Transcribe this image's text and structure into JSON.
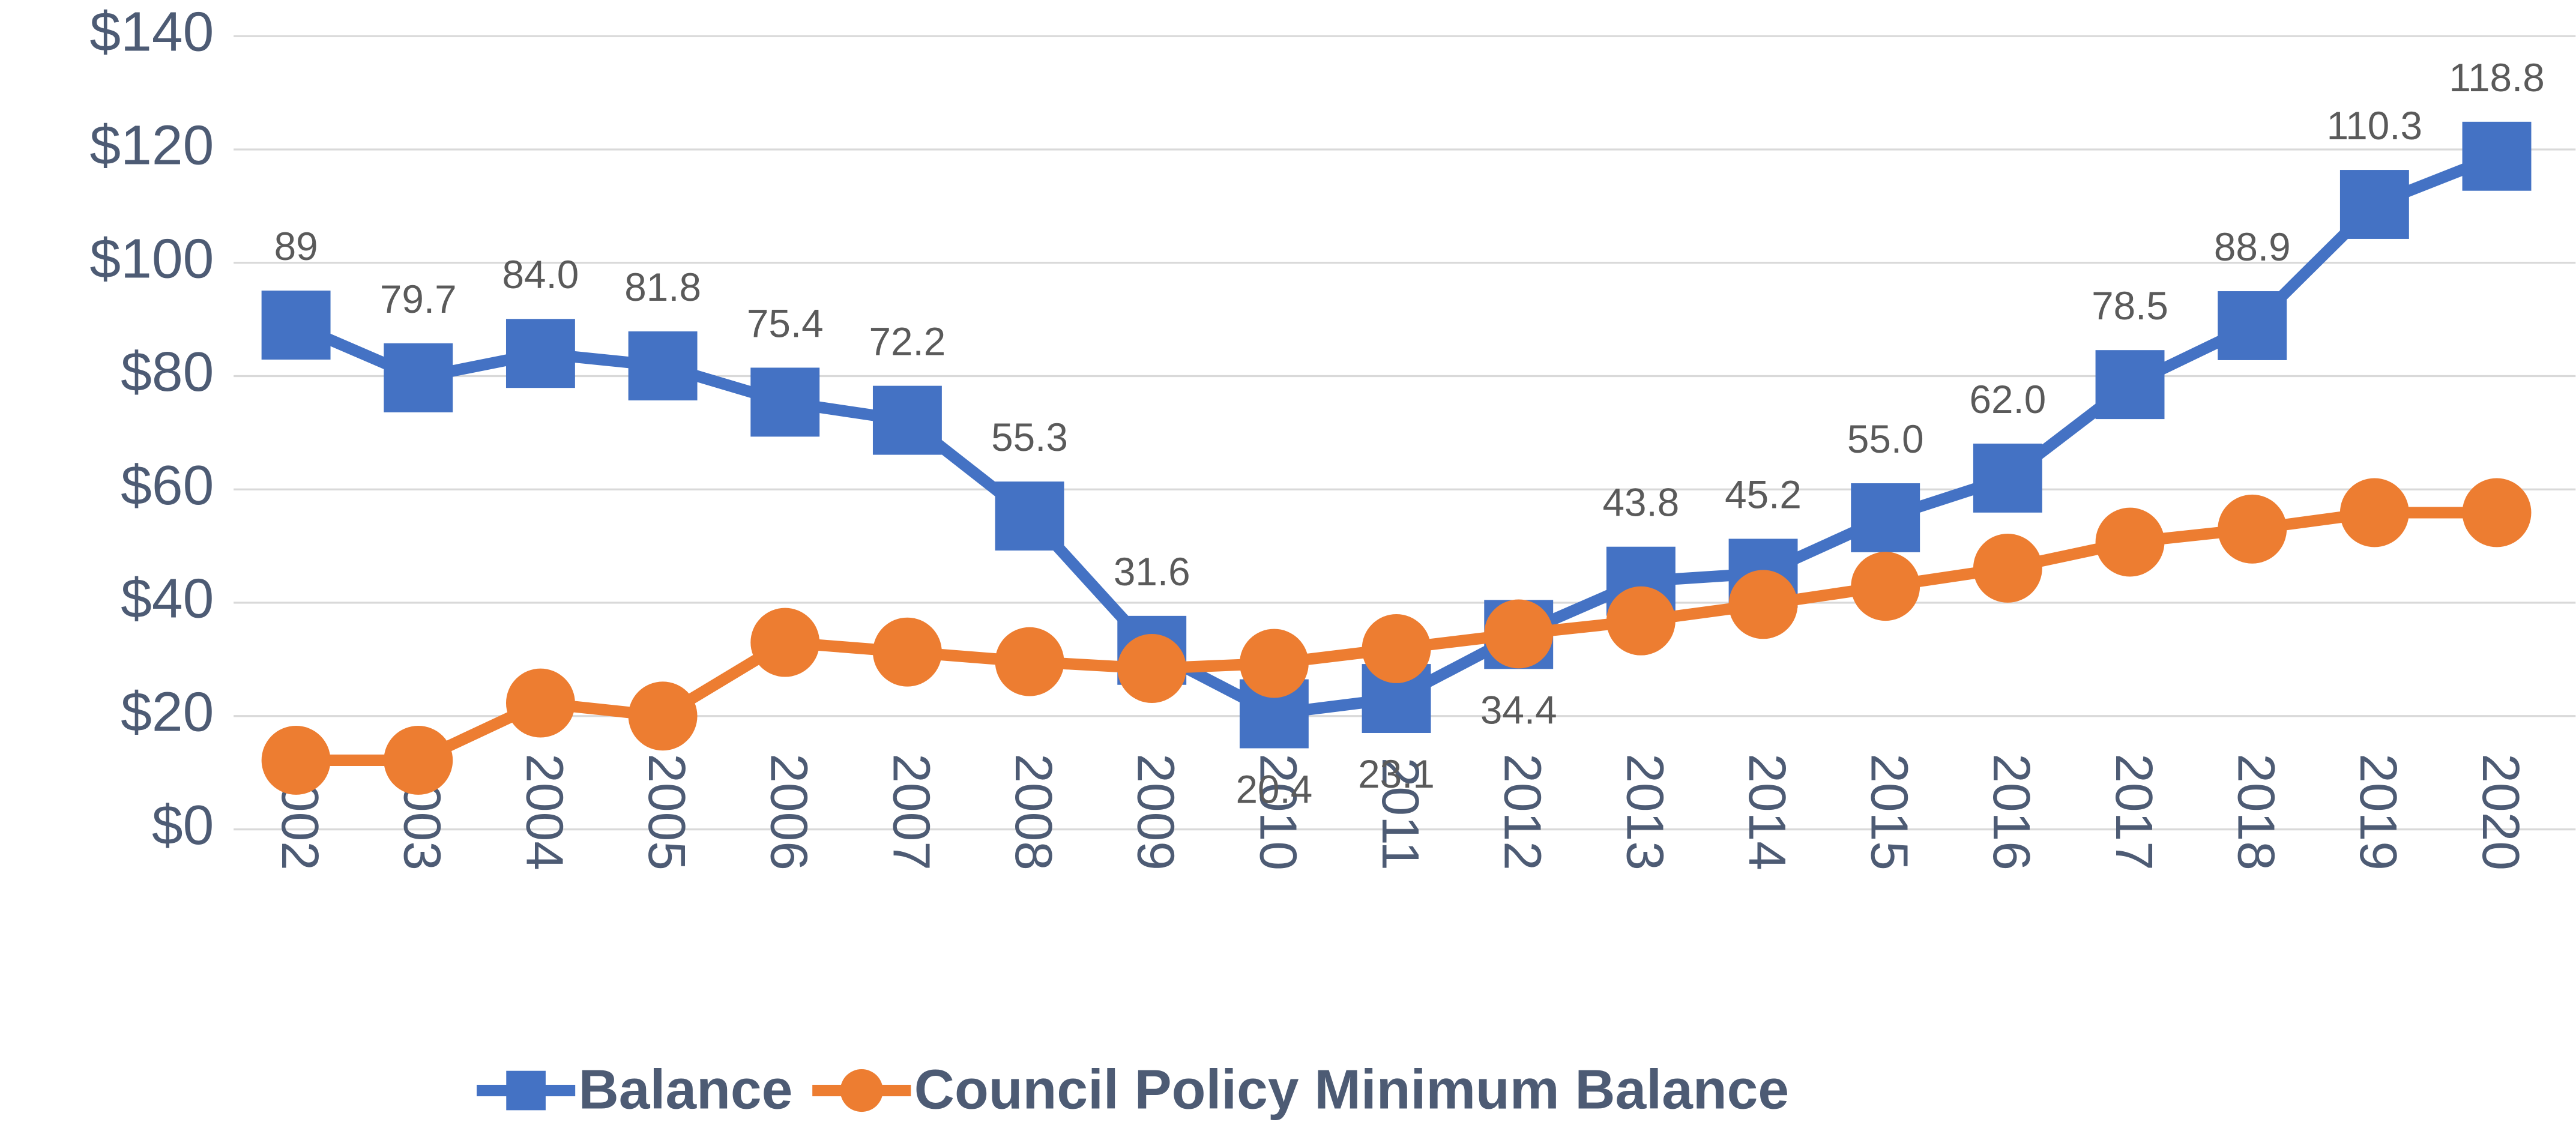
{
  "chart_data": {
    "type": "line",
    "categories": [
      "2002",
      "2003",
      "2004",
      "2005",
      "2006",
      "2007",
      "2008",
      "2009",
      "2010",
      "2011",
      "2012",
      "2013",
      "2014",
      "2015",
      "2016",
      "2017",
      "2018",
      "2019",
      "2020"
    ],
    "series": [
      {
        "name": "Balance",
        "color": "#4472c4",
        "marker": "square",
        "values": [
          89,
          79.7,
          84.0,
          81.8,
          75.4,
          72.2,
          55.3,
          31.6,
          20.4,
          23.1,
          34.4,
          43.8,
          45.2,
          55.0,
          62.0,
          78.5,
          88.9,
          110.3,
          118.8
        ],
        "value_labels": [
          "89",
          "79.7",
          "84.0",
          "81.8",
          "75.4",
          "72.2",
          "55.3",
          "31.6",
          "20.4",
          "23.1",
          "34.4",
          "43.8",
          "45.2",
          "55.0",
          "62.0",
          "78.5",
          "88.9",
          "110.3",
          "118.8"
        ]
      },
      {
        "name": "Council Policy Minimum Balance",
        "color": "#ed7d31",
        "marker": "circle",
        "values": [
          12.2,
          12.2,
          22.3,
          20.0,
          33.0,
          31.3,
          29.6,
          28.4,
          29.3,
          31.9,
          34.5,
          36.8,
          39.7,
          42.9,
          46.1,
          50.7,
          53.0,
          55.9,
          55.9
        ]
      }
    ],
    "ylim": [
      0,
      140
    ],
    "yticks": [
      {
        "value": 0,
        "label": "$0"
      },
      {
        "value": 20,
        "label": "$20"
      },
      {
        "value": 40,
        "label": "$40"
      },
      {
        "value": 60,
        "label": "$60"
      },
      {
        "value": 80,
        "label": "$80"
      },
      {
        "value": 100,
        "label": "$100"
      },
      {
        "value": 120,
        "label": "$120"
      },
      {
        "value": 140,
        "label": "$140"
      }
    ],
    "grid": true,
    "legend": "bottom"
  }
}
